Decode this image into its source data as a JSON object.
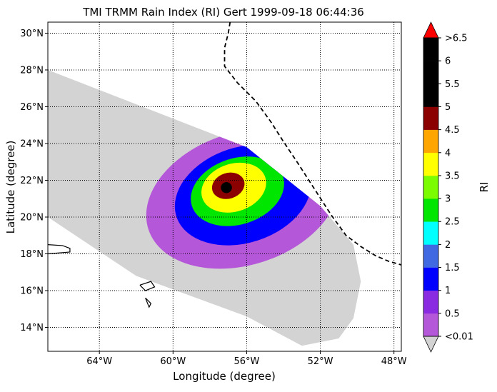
{
  "chart_data": {
    "type": "heatmap",
    "title": "TMI TRMM Rain Index (RI) Gert 1999-09-18 06:44:36",
    "xlabel": "Longitude (degree)",
    "ylabel": "Latitude (degree)",
    "xlim": [
      -66.8,
      -47.6
    ],
    "ylim": [
      12.7,
      30.6
    ],
    "x_ticks": [
      -64,
      -60,
      -56,
      -52,
      -48
    ],
    "x_tick_labels": [
      "64°W",
      "60°W",
      "56°W",
      "52°W",
      "48°W"
    ],
    "y_ticks": [
      14,
      16,
      18,
      20,
      22,
      24,
      26,
      28,
      30
    ],
    "y_tick_labels": [
      "14°N",
      "16°N",
      "18°N",
      "20°N",
      "22°N",
      "24°N",
      "26°N",
      "28°N",
      "30°N"
    ],
    "grid": true,
    "grid_style": "dotted",
    "colorbar": {
      "label": "RI",
      "levels": [
        0.01,
        0.5,
        1,
        1.5,
        2,
        2.5,
        3,
        3.5,
        4,
        4.5,
        5,
        5.5,
        6,
        6.5
      ],
      "tick_labels": [
        "<0.01",
        "0.5",
        "1",
        "1.5",
        "2",
        "2.5",
        "3",
        "3.5",
        "4",
        "4.5",
        "5",
        "5.5",
        "6",
        ">6.5"
      ],
      "colors": [
        "#b457d8",
        "#8a2be2",
        "#0000ff",
        "#4169e1",
        "#00ffff",
        "#00e600",
        "#7cfc00",
        "#ffff00",
        "#ffa500",
        "#8b0000",
        "#000000",
        "#000000",
        "#000000"
      ],
      "under_color": "#d3d3d3",
      "over_color": "#ff0000"
    },
    "swath": {
      "color": "#d3d3d3",
      "outline": [
        [
          -66.8,
          28.0
        ],
        [
          -56.0,
          23.8
        ],
        [
          -52.0,
          20.6
        ],
        [
          -50.2,
          18.5
        ],
        [
          -49.8,
          16.5
        ],
        [
          -50.2,
          14.5
        ],
        [
          -51.0,
          13.4
        ],
        [
          -53.0,
          13.0
        ],
        [
          -56.0,
          14.6
        ],
        [
          -62.0,
          16.8
        ],
        [
          -66.8,
          20.0
        ]
      ]
    },
    "storm_center": [
      -57.1,
      21.7
    ],
    "rain_rings": [
      {
        "name": "outer-band",
        "center": [
          -56.2,
          21.0
        ],
        "rx": 5.4,
        "ry": 3.6,
        "value": 0.3
      },
      {
        "name": "band-2",
        "center": [
          -56.2,
          21.2
        ],
        "rx": 3.8,
        "ry": 2.6,
        "value": 1.2
      },
      {
        "name": "band-3",
        "center": [
          -56.5,
          21.4
        ],
        "rx": 2.6,
        "ry": 1.8,
        "value": 2.8
      },
      {
        "name": "band-4",
        "center": [
          -56.7,
          21.6
        ],
        "rx": 1.8,
        "ry": 1.3,
        "value": 3.7
      },
      {
        "name": "eyewall",
        "center": [
          -57.0,
          21.7
        ],
        "rx": 0.9,
        "ry": 0.7,
        "value": 4.7
      },
      {
        "name": "eye",
        "center": [
          -57.1,
          21.6
        ],
        "rx": 0.3,
        "ry": 0.3,
        "value": 6.0
      }
    ],
    "track": {
      "style": "dashed",
      "lon": [
        -56.9,
        -57.0,
        -57.2,
        -57.2,
        -56.5,
        -55.5,
        -54.7,
        -54.0,
        -53.2,
        -52.3,
        -51.4,
        -50.6,
        -49.8,
        -49.0,
        -48.3,
        -47.6
      ],
      "lat": [
        30.6,
        30.0,
        29.2,
        28.2,
        27.3,
        26.3,
        25.2,
        24.1,
        22.9,
        21.5,
        20.1,
        19.0,
        18.4,
        17.9,
        17.6,
        17.4
      ]
    },
    "coastlines": [
      {
        "name": "puerto-rico-edge",
        "lon": [
          -66.8,
          -66.0,
          -65.6,
          -65.6,
          -66.8
        ],
        "lat": [
          18.5,
          18.45,
          18.3,
          18.1,
          18.0
        ]
      },
      {
        "name": "guadeloupe",
        "lon": [
          -61.8,
          -61.2,
          -61.0,
          -61.5,
          -61.8
        ],
        "lat": [
          16.3,
          16.5,
          16.2,
          16.0,
          16.3
        ]
      },
      {
        "name": "dominica",
        "lon": [
          -61.5,
          -61.2,
          -61.3,
          -61.5
        ],
        "lat": [
          15.6,
          15.3,
          15.1,
          15.6
        ]
      }
    ]
  }
}
